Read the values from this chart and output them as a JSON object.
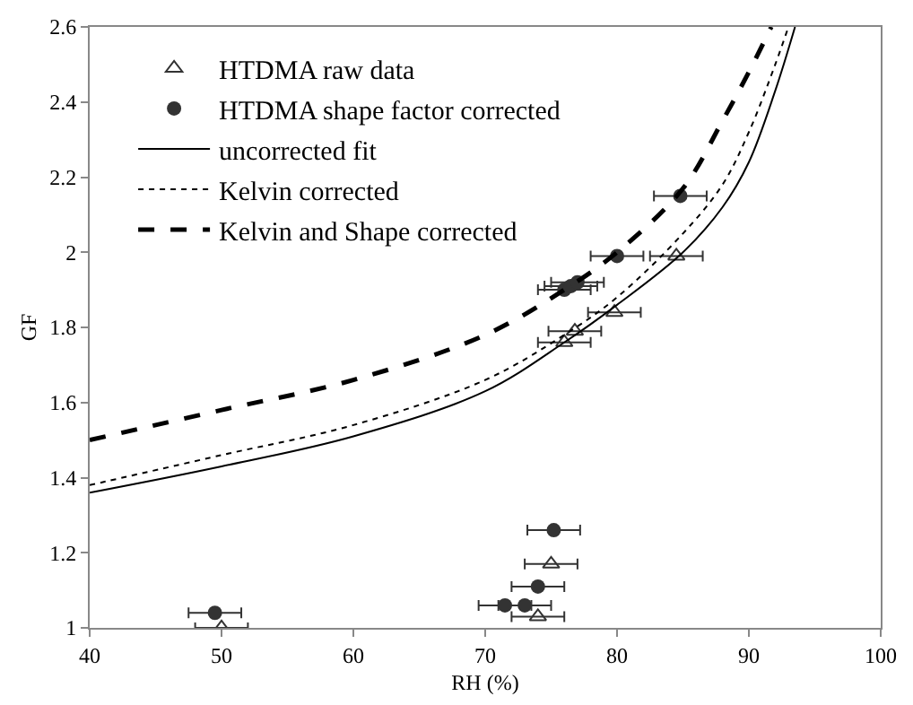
{
  "chart_data": {
    "type": "scatter",
    "xlabel": "RH (%)",
    "ylabel": "GF",
    "xlim": [
      40,
      100
    ],
    "xticks": [
      40,
      50,
      60,
      70,
      80,
      90,
      100
    ],
    "ylim": [
      1,
      2.6
    ],
    "yticks": [
      1,
      1.2,
      1.4,
      1.6,
      1.8,
      2,
      2.2,
      2.4,
      2.6
    ],
    "legend": "top left",
    "series": [
      {
        "name": "HTDMA raw data",
        "marker": "triangle",
        "color": "#333333",
        "x": [
          50,
          74,
          75,
          76,
          76.8,
          79.8,
          84.5
        ],
        "values": [
          1.0,
          1.03,
          1.17,
          1.76,
          1.79,
          1.84,
          1.99
        ],
        "xerrors": [
          2,
          2,
          2,
          2,
          2,
          2,
          2
        ]
      },
      {
        "name": "HTDMA shape factor corrected",
        "marker": "circle",
        "color": "#333333",
        "x": [
          49.5,
          71.5,
          73,
          74,
          75.2,
          76,
          76.5,
          77,
          80,
          84.8
        ],
        "values": [
          1.04,
          1.06,
          1.06,
          1.11,
          1.26,
          1.9,
          1.91,
          1.92,
          1.99,
          2.15
        ],
        "xerrors": [
          2,
          2,
          2,
          2,
          2,
          2,
          2,
          2,
          2,
          2
        ]
      },
      {
        "name": "uncorrected fit",
        "type": "line",
        "line_style": "solid",
        "color": "#000000",
        "x": [
          40,
          50,
          60,
          70,
          76,
          80,
          85,
          88,
          90,
          92,
          93.5
        ],
        "values": [
          1.36,
          1.43,
          1.51,
          1.63,
          1.76,
          1.86,
          2.0,
          2.12,
          2.24,
          2.43,
          2.6
        ]
      },
      {
        "name": "Kelvin corrected",
        "type": "line",
        "line_style": "dotted",
        "color": "#000000",
        "x": [
          40,
          50,
          60,
          70,
          76,
          80,
          85,
          88,
          90,
          92,
          93
        ],
        "values": [
          1.38,
          1.46,
          1.54,
          1.66,
          1.78,
          1.88,
          2.05,
          2.18,
          2.32,
          2.5,
          2.6
        ]
      },
      {
        "name": "Kelvin and Shape corrected",
        "type": "line",
        "line_style": "dashed",
        "color": "#000000",
        "x": [
          40,
          50,
          60,
          70,
          76,
          80,
          85,
          88,
          90,
          91.7
        ],
        "values": [
          1.5,
          1.58,
          1.66,
          1.78,
          1.9,
          2.0,
          2.17,
          2.35,
          2.48,
          2.6
        ]
      }
    ]
  }
}
